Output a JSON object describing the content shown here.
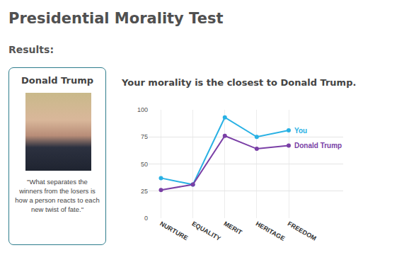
{
  "header": {
    "title": "Presidential Morality Test",
    "subtitle": "Results:"
  },
  "card": {
    "name": "Donald Trump",
    "quote": "\"What separates the winners from the losers is how a person reacts to each new twist of fate.\""
  },
  "chart_data": {
    "type": "line",
    "title": "Your morality is the closest to Donald Trump.",
    "categories": [
      "NURTURE",
      "EQUALITY",
      "MERIT",
      "HERITAGE",
      "FREEDOM"
    ],
    "series": [
      {
        "name": "You",
        "color": "#29b1e4",
        "values": [
          37,
          31,
          93,
          75,
          81
        ]
      },
      {
        "name": "Donald Trump",
        "color": "#7a3fa6",
        "values": [
          26,
          31,
          76,
          64,
          67
        ]
      }
    ],
    "ylim": [
      0,
      100
    ],
    "yticks": [
      0,
      25,
      50,
      75,
      100
    ],
    "grid": true,
    "marker": "circle",
    "line_style": "solid"
  }
}
